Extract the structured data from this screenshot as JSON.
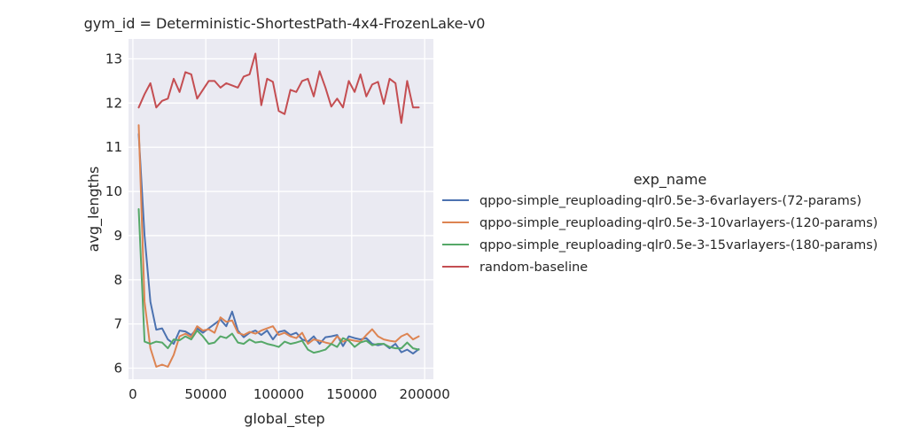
{
  "chart_data": {
    "type": "line",
    "title": "gym_id = Deterministic-ShortestPath-4x4-FrozenLake-v0",
    "xlabel": "global_step",
    "ylabel": "avg_lengths",
    "xlim": [
      -3000,
      206000
    ],
    "ylim": [
      5.75,
      13.45
    ],
    "xticks": [
      0,
      50000,
      100000,
      150000,
      200000
    ],
    "xtick_labels": [
      "0",
      "50000",
      "100000",
      "150000",
      "200000"
    ],
    "yticks": [
      6,
      7,
      8,
      9,
      10,
      11,
      12,
      13
    ],
    "ytick_labels": [
      "6",
      "7",
      "8",
      "9",
      "10",
      "11",
      "12",
      "13"
    ],
    "grid": true,
    "background": "#eaeaf2",
    "legend": {
      "title": "exp_name",
      "placement": "right-outside"
    },
    "x": [
      4000,
      8000,
      12000,
      16000,
      20000,
      24000,
      28000,
      32000,
      36000,
      40000,
      44000,
      48000,
      52000,
      56000,
      60000,
      64000,
      68000,
      72000,
      76000,
      80000,
      84000,
      88000,
      92000,
      96000,
      100000,
      104000,
      108000,
      112000,
      116000,
      120000,
      124000,
      128000,
      132000,
      136000,
      140000,
      144000,
      148000,
      152000,
      156000,
      160000,
      164000,
      168000,
      172000,
      176000,
      180000,
      184000,
      188000,
      192000,
      196000
    ],
    "series": [
      {
        "name": "qppo-simple_reuploading-qlr0.5e-3-6varlayers-(72-params)",
        "color": "#4c72b0",
        "values": [
          11.3,
          9.0,
          7.5,
          6.87,
          6.9,
          6.65,
          6.55,
          6.85,
          6.83,
          6.75,
          6.9,
          6.8,
          6.9,
          7.0,
          7.1,
          6.95,
          7.28,
          6.85,
          6.7,
          6.8,
          6.85,
          6.75,
          6.85,
          6.65,
          6.82,
          6.85,
          6.75,
          6.8,
          6.65,
          6.6,
          6.72,
          6.55,
          6.7,
          6.72,
          6.75,
          6.5,
          6.72,
          6.68,
          6.65,
          6.68,
          6.55,
          6.52,
          6.55,
          6.45,
          6.55,
          6.36,
          6.42,
          6.33,
          6.43
        ]
      },
      {
        "name": "qppo-simple_reuploading-qlr0.5e-3-10varlayers-(120-params)",
        "color": "#dd8452",
        "values": [
          11.5,
          7.5,
          6.45,
          6.03,
          6.08,
          6.03,
          6.3,
          6.72,
          6.78,
          6.7,
          6.95,
          6.85,
          6.88,
          6.8,
          7.15,
          7.05,
          7.08,
          6.8,
          6.75,
          6.82,
          6.78,
          6.85,
          6.9,
          6.95,
          6.75,
          6.8,
          6.72,
          6.68,
          6.8,
          6.55,
          6.65,
          6.62,
          6.58,
          6.55,
          6.72,
          6.6,
          6.65,
          6.62,
          6.6,
          6.75,
          6.88,
          6.72,
          6.65,
          6.62,
          6.6,
          6.72,
          6.78,
          6.65,
          6.72
        ]
      },
      {
        "name": "qppo-simple_reuploading-qlr0.5e-3-15varlayers-(180-params)",
        "color": "#55a868",
        "values": [
          9.6,
          6.6,
          6.55,
          6.6,
          6.58,
          6.45,
          6.65,
          6.63,
          6.72,
          6.65,
          6.85,
          6.72,
          6.55,
          6.58,
          6.72,
          6.68,
          6.78,
          6.58,
          6.55,
          6.65,
          6.58,
          6.6,
          6.55,
          6.52,
          6.48,
          6.6,
          6.55,
          6.58,
          6.62,
          6.42,
          6.35,
          6.38,
          6.42,
          6.55,
          6.48,
          6.68,
          6.62,
          6.48,
          6.58,
          6.62,
          6.52,
          6.55,
          6.55,
          6.48,
          6.45,
          6.45,
          6.58,
          6.45,
          6.42
        ]
      },
      {
        "name": "random-baseline",
        "color": "#c44e52",
        "values": [
          11.9,
          12.2,
          12.45,
          11.9,
          12.05,
          12.1,
          12.55,
          12.25,
          12.7,
          12.65,
          12.1,
          12.3,
          12.5,
          12.5,
          12.35,
          12.45,
          12.4,
          12.35,
          12.6,
          12.65,
          13.12,
          11.95,
          12.55,
          12.48,
          11.82,
          11.75,
          12.3,
          12.25,
          12.5,
          12.55,
          12.15,
          12.72,
          12.35,
          11.92,
          12.1,
          11.9,
          12.5,
          12.25,
          12.65,
          12.15,
          12.42,
          12.48,
          11.98,
          12.55,
          12.45,
          11.55,
          12.5,
          11.9,
          11.9
        ]
      }
    ]
  }
}
